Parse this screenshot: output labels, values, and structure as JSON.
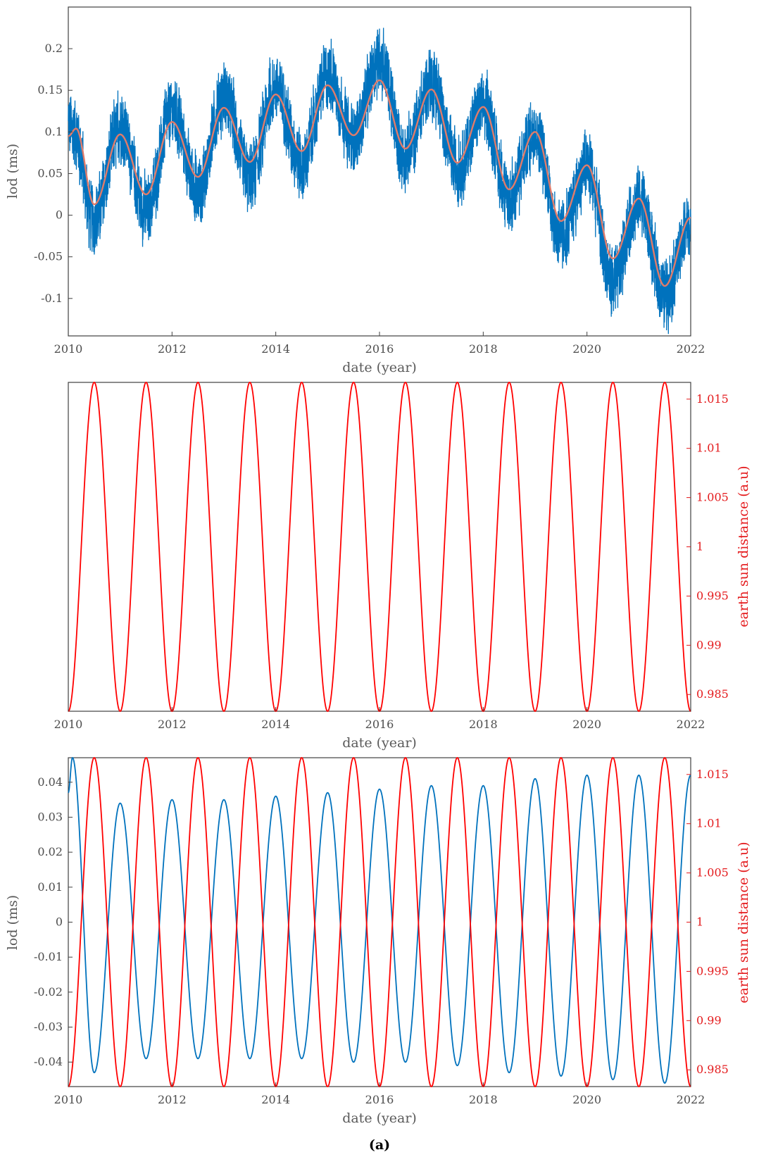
{
  "caption": "(a)",
  "colors": {
    "lod_raw": "#0072bd",
    "lod_fit": "#e07b6a",
    "distance": "#ff0000",
    "axis": "#404040",
    "label_red": "#e41a1c"
  },
  "chart_data": [
    {
      "type": "line",
      "xlabel": "date (year)",
      "ylabel": "lod (ms)",
      "xlim": [
        2010,
        2022
      ],
      "ylim": [
        -0.145,
        0.25
      ],
      "xticks": [
        2010,
        2012,
        2014,
        2016,
        2018,
        2020,
        2022
      ],
      "yticks": [
        -0.1,
        -0.05,
        0,
        0.05,
        0.1,
        0.15,
        0.2
      ],
      "ytick_labels": [
        "-0.1",
        "-0.05",
        "0",
        "0.05",
        "0.1",
        "0.15",
        "0.2"
      ],
      "series": [
        {
          "role": "raw",
          "color": "#0072bd",
          "x": [
            2010.0,
            2010.5,
            2011.0,
            2011.5,
            2012.0,
            2012.5,
            2013.0,
            2013.5,
            2014.0,
            2014.5,
            2015.0,
            2015.5,
            2016.0,
            2016.5,
            2017.0,
            2017.5,
            2018.0,
            2018.5,
            2019.0,
            2019.5,
            2020.0,
            2020.5,
            2021.0,
            2021.5,
            2022.0
          ],
          "y": [
            0.12,
            -0.03,
            0.12,
            -0.02,
            0.14,
            0.01,
            0.16,
            0.02,
            0.16,
            0.04,
            0.18,
            0.09,
            0.22,
            0.06,
            0.17,
            0.05,
            0.13,
            0.01,
            0.1,
            -0.05,
            0.06,
            -0.12,
            0.02,
            -0.11,
            -0.02
          ]
        },
        {
          "role": "fit",
          "color": "#e07b6a",
          "x": [
            2010.0,
            2010.15,
            2010.5,
            2011.0,
            2011.5,
            2012.0,
            2012.5,
            2013.0,
            2013.5,
            2014.0,
            2014.5,
            2015.0,
            2015.5,
            2016.0,
            2016.5,
            2017.0,
            2017.5,
            2018.0,
            2018.5,
            2019.0,
            2019.5,
            2020.0,
            2020.5,
            2021.0,
            2021.5,
            2022.0
          ],
          "y": [
            0.095,
            0.104,
            0.013,
            0.097,
            0.025,
            0.112,
            0.046,
            0.129,
            0.064,
            0.145,
            0.077,
            0.156,
            0.096,
            0.162,
            0.08,
            0.151,
            0.063,
            0.13,
            0.031,
            0.1,
            -0.007,
            0.06,
            -0.052,
            0.02,
            -0.085,
            -0.003
          ]
        }
      ]
    },
    {
      "type": "line",
      "xlabel": "date (year)",
      "ylabel_right": "earth sun distance (a.u)",
      "xlim": [
        2010,
        2022
      ],
      "ylim_right": [
        0.9833,
        1.0167
      ],
      "xticks": [
        2010,
        2012,
        2014,
        2016,
        2018,
        2020,
        2022
      ],
      "yticks_right": [
        0.985,
        0.99,
        0.995,
        1,
        1.005,
        1.01,
        1.015
      ],
      "ytick_labels_right": [
        "0.985",
        "0.99",
        "0.995",
        "1",
        "1.005",
        "1.01",
        "1.015"
      ],
      "series": [
        {
          "role": "distance",
          "color": "#ff0000",
          "model": "sinusoid",
          "mean": 1.0,
          "amplitude": 0.0167,
          "period_years": 1,
          "min_at_year": 2010.0
        }
      ]
    },
    {
      "type": "line",
      "xlabel": "date (year)",
      "ylabel": "lod (ms)",
      "ylabel_right": "earth sun distance (a.u)",
      "xlim": [
        2010,
        2022
      ],
      "ylim": [
        -0.047,
        0.047
      ],
      "ylim_right": [
        0.9833,
        1.0167
      ],
      "xticks": [
        2010,
        2012,
        2014,
        2016,
        2018,
        2020,
        2022
      ],
      "yticks": [
        -0.04,
        -0.03,
        -0.02,
        -0.01,
        0,
        0.01,
        0.02,
        0.03,
        0.04
      ],
      "ytick_labels": [
        "-0.04",
        "-0.03",
        "-0.02",
        "-0.01",
        "0",
        "0.01",
        "0.02",
        "0.03",
        "0.04"
      ],
      "yticks_right": [
        0.985,
        0.99,
        0.995,
        1,
        1.005,
        1.01,
        1.015
      ],
      "ytick_labels_right": [
        "0.985",
        "0.99",
        "0.995",
        "1",
        "1.005",
        "1.01",
        "1.015"
      ],
      "series": [
        {
          "role": "lod_semiannual",
          "color": "#0072bd",
          "model": "sinusoid",
          "period_years": 0.5,
          "peak_at_year": 2010.08,
          "peaks": [
            {
              "x": 2010.08,
              "y": 0.047
            },
            {
              "x": 2011.0,
              "y": 0.034
            },
            {
              "x": 2012.0,
              "y": 0.035
            },
            {
              "x": 2013.0,
              "y": 0.035
            },
            {
              "x": 2014.0,
              "y": 0.036
            },
            {
              "x": 2015.0,
              "y": 0.037
            },
            {
              "x": 2016.0,
              "y": 0.038
            },
            {
              "x": 2017.0,
              "y": 0.039
            },
            {
              "x": 2018.0,
              "y": 0.039
            },
            {
              "x": 2019.0,
              "y": 0.041
            },
            {
              "x": 2020.0,
              "y": 0.042
            },
            {
              "x": 2021.0,
              "y": 0.042
            },
            {
              "x": 2022.0,
              "y": 0.042
            }
          ],
          "troughs": [
            {
              "x": 2010.5,
              "y": -0.043
            },
            {
              "x": 2011.5,
              "y": -0.039
            },
            {
              "x": 2012.5,
              "y": -0.039
            },
            {
              "x": 2013.5,
              "y": -0.039
            },
            {
              "x": 2014.5,
              "y": -0.039
            },
            {
              "x": 2015.5,
              "y": -0.04
            },
            {
              "x": 2016.5,
              "y": -0.04
            },
            {
              "x": 2017.5,
              "y": -0.041
            },
            {
              "x": 2018.5,
              "y": -0.043
            },
            {
              "x": 2019.5,
              "y": -0.044
            },
            {
              "x": 2020.5,
              "y": -0.045
            },
            {
              "x": 2021.5,
              "y": -0.046
            }
          ]
        },
        {
          "role": "distance",
          "color": "#ff0000",
          "model": "sinusoid",
          "mean": 1.0,
          "amplitude": 0.0167,
          "period_years": 1,
          "min_at_year": 2010.0
        }
      ]
    }
  ]
}
